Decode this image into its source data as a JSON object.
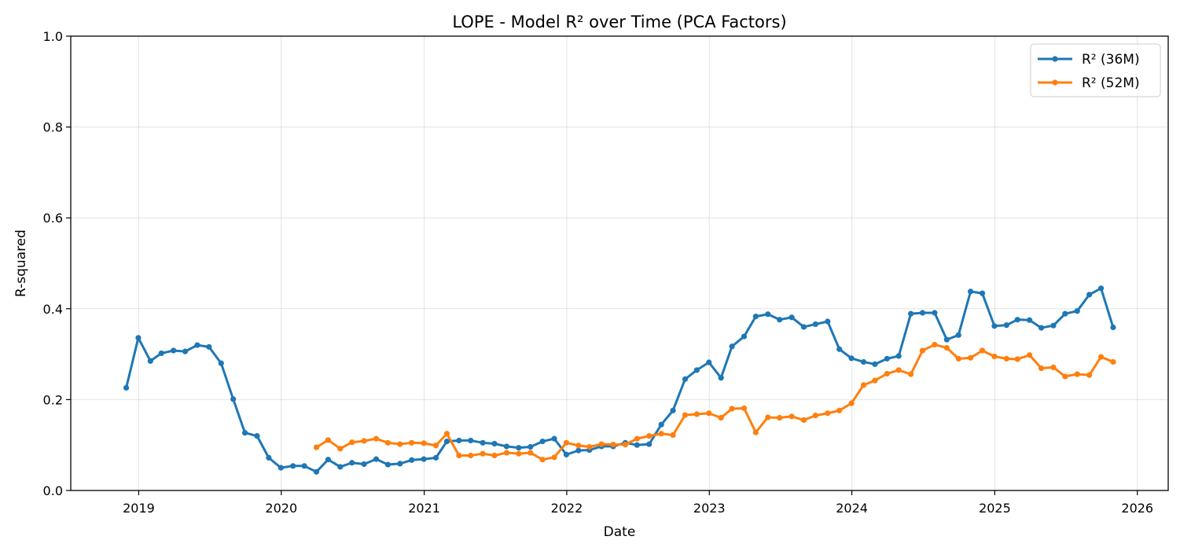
{
  "chart_data": {
    "type": "line",
    "title": "LOPE - Model R² over Time (PCA Factors)",
    "xlabel": "Date",
    "ylabel": "R-squared",
    "xlim": [
      "2018-07-11",
      "2026-03-21"
    ],
    "ylim": [
      0,
      1.0
    ],
    "x_ticks": [
      "2019",
      "2020",
      "2021",
      "2022",
      "2023",
      "2024",
      "2025",
      "2026"
    ],
    "y_ticks": [
      "0.0",
      "0.2",
      "0.4",
      "0.6",
      "0.8",
      "1.0"
    ],
    "grid": true,
    "legend_position": "top-right",
    "series": [
      {
        "name": "R² (36M)",
        "color": "#1f77b4",
        "points": [
          [
            "2018-11-30",
            0.226
          ],
          [
            "2018-12-31",
            0.336
          ],
          [
            "2019-01-31",
            0.285
          ],
          [
            "2019-02-28",
            0.302
          ],
          [
            "2019-03-31",
            0.308
          ],
          [
            "2019-04-30",
            0.306
          ],
          [
            "2019-05-31",
            0.32
          ],
          [
            "2019-06-30",
            0.316
          ],
          [
            "2019-07-31",
            0.28
          ],
          [
            "2019-08-31",
            0.201
          ],
          [
            "2019-09-30",
            0.127
          ],
          [
            "2019-10-31",
            0.12
          ],
          [
            "2019-11-30",
            0.072
          ],
          [
            "2019-12-31",
            0.05
          ],
          [
            "2020-01-31",
            0.054
          ],
          [
            "2020-02-29",
            0.054
          ],
          [
            "2020-03-31",
            0.041
          ],
          [
            "2020-04-30",
            0.068
          ],
          [
            "2020-05-31",
            0.052
          ],
          [
            "2020-06-30",
            0.061
          ],
          [
            "2020-07-31",
            0.058
          ],
          [
            "2020-08-31",
            0.069
          ],
          [
            "2020-09-30",
            0.057
          ],
          [
            "2020-10-31",
            0.059
          ],
          [
            "2020-11-30",
            0.067
          ],
          [
            "2020-12-31",
            0.069
          ],
          [
            "2021-01-31",
            0.072
          ],
          [
            "2021-02-28",
            0.108
          ],
          [
            "2021-03-31",
            0.11
          ],
          [
            "2021-04-30",
            0.11
          ],
          [
            "2021-05-31",
            0.105
          ],
          [
            "2021-06-30",
            0.103
          ],
          [
            "2021-07-31",
            0.097
          ],
          [
            "2021-08-31",
            0.094
          ],
          [
            "2021-09-30",
            0.096
          ],
          [
            "2021-10-31",
            0.108
          ],
          [
            "2021-11-30",
            0.114
          ],
          [
            "2021-12-31",
            0.079
          ],
          [
            "2022-01-31",
            0.088
          ],
          [
            "2022-02-28",
            0.089
          ],
          [
            "2022-03-31",
            0.097
          ],
          [
            "2022-04-30",
            0.097
          ],
          [
            "2022-05-31",
            0.105
          ],
          [
            "2022-06-30",
            0.1
          ],
          [
            "2022-07-31",
            0.102
          ],
          [
            "2022-08-31",
            0.145
          ],
          [
            "2022-09-30",
            0.176
          ],
          [
            "2022-10-31",
            0.245
          ],
          [
            "2022-11-30",
            0.265
          ],
          [
            "2022-12-31",
            0.282
          ],
          [
            "2023-01-31",
            0.248
          ],
          [
            "2023-02-28",
            0.317
          ],
          [
            "2023-03-31",
            0.339
          ],
          [
            "2023-04-30",
            0.383
          ],
          [
            "2023-05-31",
            0.388
          ],
          [
            "2023-06-30",
            0.376
          ],
          [
            "2023-07-31",
            0.381
          ],
          [
            "2023-08-31",
            0.36
          ],
          [
            "2023-09-30",
            0.366
          ],
          [
            "2023-10-31",
            0.372
          ],
          [
            "2023-11-30",
            0.311
          ],
          [
            "2023-12-31",
            0.291
          ],
          [
            "2024-01-31",
            0.283
          ],
          [
            "2024-02-29",
            0.278
          ],
          [
            "2024-03-31",
            0.29
          ],
          [
            "2024-04-30",
            0.296
          ],
          [
            "2024-05-31",
            0.389
          ],
          [
            "2024-06-30",
            0.391
          ],
          [
            "2024-07-31",
            0.391
          ],
          [
            "2024-08-31",
            0.332
          ],
          [
            "2024-09-30",
            0.342
          ],
          [
            "2024-10-31",
            0.438
          ],
          [
            "2024-11-30",
            0.434
          ],
          [
            "2024-12-31",
            0.362
          ],
          [
            "2025-01-31",
            0.364
          ],
          [
            "2025-02-28",
            0.376
          ],
          [
            "2025-03-31",
            0.375
          ],
          [
            "2025-04-30",
            0.358
          ],
          [
            "2025-05-31",
            0.363
          ],
          [
            "2025-06-30",
            0.389
          ],
          [
            "2025-07-31",
            0.395
          ],
          [
            "2025-08-31",
            0.431
          ],
          [
            "2025-09-30",
            0.445
          ],
          [
            "2025-10-31",
            0.359
          ]
        ]
      },
      {
        "name": "R² (52M)",
        "color": "#ff7f0e",
        "points": [
          [
            "2020-03-31",
            0.095
          ],
          [
            "2020-04-30",
            0.111
          ],
          [
            "2020-05-31",
            0.092
          ],
          [
            "2020-06-30",
            0.106
          ],
          [
            "2020-07-31",
            0.109
          ],
          [
            "2020-08-31",
            0.114
          ],
          [
            "2020-09-30",
            0.105
          ],
          [
            "2020-10-31",
            0.102
          ],
          [
            "2020-11-30",
            0.105
          ],
          [
            "2020-12-31",
            0.104
          ],
          [
            "2021-01-31",
            0.099
          ],
          [
            "2021-02-28",
            0.125
          ],
          [
            "2021-03-31",
            0.077
          ],
          [
            "2021-04-30",
            0.077
          ],
          [
            "2021-05-31",
            0.081
          ],
          [
            "2021-06-30",
            0.077
          ],
          [
            "2021-07-31",
            0.083
          ],
          [
            "2021-08-31",
            0.081
          ],
          [
            "2021-09-30",
            0.083
          ],
          [
            "2021-10-31",
            0.068
          ],
          [
            "2021-11-30",
            0.073
          ],
          [
            "2021-12-31",
            0.105
          ],
          [
            "2022-01-31",
            0.099
          ],
          [
            "2022-02-28",
            0.096
          ],
          [
            "2022-03-31",
            0.102
          ],
          [
            "2022-04-30",
            0.101
          ],
          [
            "2022-05-31",
            0.101
          ],
          [
            "2022-06-30",
            0.114
          ],
          [
            "2022-07-31",
            0.12
          ],
          [
            "2022-08-31",
            0.125
          ],
          [
            "2022-09-30",
            0.122
          ],
          [
            "2022-10-31",
            0.166
          ],
          [
            "2022-11-30",
            0.168
          ],
          [
            "2022-12-31",
            0.17
          ],
          [
            "2023-01-31",
            0.16
          ],
          [
            "2023-02-28",
            0.18
          ],
          [
            "2023-03-31",
            0.181
          ],
          [
            "2023-04-30",
            0.128
          ],
          [
            "2023-05-31",
            0.161
          ],
          [
            "2023-06-30",
            0.16
          ],
          [
            "2023-07-31",
            0.163
          ],
          [
            "2023-08-31",
            0.155
          ],
          [
            "2023-09-30",
            0.165
          ],
          [
            "2023-10-31",
            0.17
          ],
          [
            "2023-11-30",
            0.176
          ],
          [
            "2023-12-31",
            0.192
          ],
          [
            "2024-01-31",
            0.232
          ],
          [
            "2024-02-29",
            0.242
          ],
          [
            "2024-03-31",
            0.257
          ],
          [
            "2024-04-30",
            0.265
          ],
          [
            "2024-05-31",
            0.256
          ],
          [
            "2024-06-30",
            0.308
          ],
          [
            "2024-07-31",
            0.321
          ],
          [
            "2024-08-31",
            0.314
          ],
          [
            "2024-09-30",
            0.29
          ],
          [
            "2024-10-31",
            0.292
          ],
          [
            "2024-11-30",
            0.308
          ],
          [
            "2024-12-31",
            0.295
          ],
          [
            "2025-01-31",
            0.29
          ],
          [
            "2025-02-28",
            0.289
          ],
          [
            "2025-03-31",
            0.298
          ],
          [
            "2025-04-30",
            0.269
          ],
          [
            "2025-05-31",
            0.271
          ],
          [
            "2025-06-30",
            0.251
          ],
          [
            "2025-07-31",
            0.256
          ],
          [
            "2025-08-31",
            0.254
          ],
          [
            "2025-09-30",
            0.294
          ],
          [
            "2025-10-31",
            0.283
          ]
        ]
      }
    ]
  }
}
